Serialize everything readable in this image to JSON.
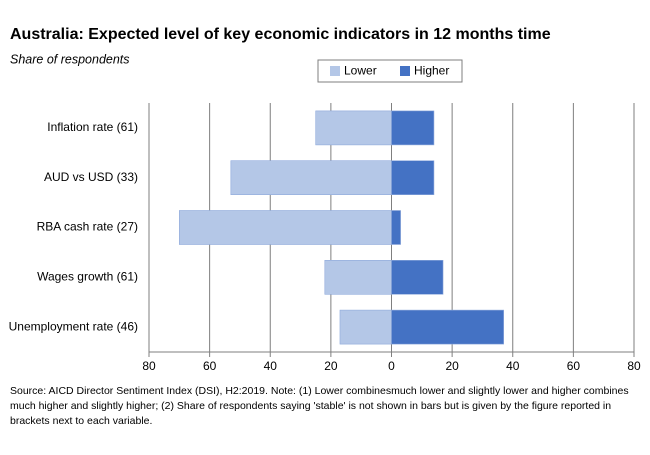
{
  "chart_data": {
    "type": "diverging-bar",
    "title": "Australia: Expected level of key economic indicators in 12 months time",
    "subtitle": "Share of respondents",
    "categories": [
      "Inflation rate (61)",
      "AUD vs USD (33)",
      "RBA cash rate (27)",
      "Wages growth (61)",
      "Unemployment rate (46)"
    ],
    "series": [
      {
        "name": "Lower",
        "color": "#b4c7e7",
        "values": [
          -25,
          -53,
          -70,
          -22,
          -17
        ]
      },
      {
        "name": "Higher",
        "color": "#4472c4",
        "values": [
          14,
          14,
          3,
          17,
          37
        ]
      }
    ],
    "xlim": [
      -80,
      80
    ],
    "xticks": [
      {
        "value": -80,
        "label": "80"
      },
      {
        "value": -60,
        "label": "60"
      },
      {
        "value": -40,
        "label": "40"
      },
      {
        "value": -20,
        "label": "20"
      },
      0,
      20,
      40,
      60,
      80
    ],
    "grid": true,
    "legend": "top",
    "footnote": "Source: AICD Director Sentiment Index (DSI), H2:2019.  Note: (1) Lower combinesmuch lower and slightly lower and higher combines much higher and slightly higher; (2) Share of respondents saying 'stable' is not shown in bars but is given by the figure reported in brackets next to each variable."
  }
}
